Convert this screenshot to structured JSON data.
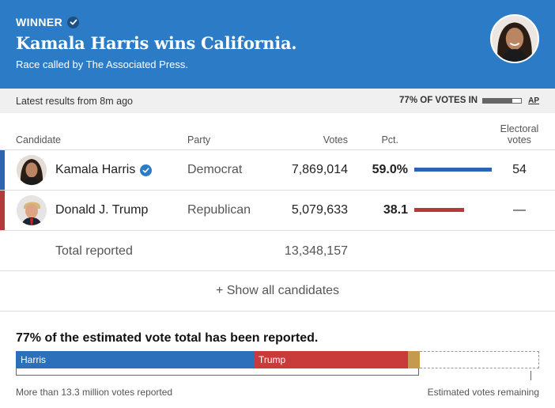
{
  "banner": {
    "winner_label": "WINNER",
    "headline": "Kamala Harris wins California.",
    "race_called": "Race called by The Associated Press.",
    "background_color": "#2c7bc6",
    "avatar_icon": "harris-portrait-icon"
  },
  "status": {
    "latest": "Latest results from 8m ago",
    "votes_in_label": "77% OF VOTES IN",
    "votes_in_fraction": 0.77,
    "source_link": "AP"
  },
  "table": {
    "headers": {
      "candidate": "Candidate",
      "party": "Party",
      "votes": "Votes",
      "pct": "Pct.",
      "electoral": "Electoral votes"
    },
    "rows": [
      {
        "name": "Kamala Harris",
        "party": "Democrat",
        "votes": "7,869,014",
        "pct": "59.0%",
        "pct_value": 59.0,
        "electoral_votes": "54",
        "winner": true,
        "color": "#2c64b5"
      },
      {
        "name": "Donald J. Trump",
        "party": "Republican",
        "votes": "5,079,633",
        "pct": "38.1",
        "pct_value": 38.1,
        "electoral_votes": "—",
        "winner": false,
        "color": "#b33a3a"
      }
    ],
    "total_label": "Total reported",
    "total_votes": "13,348,157",
    "show_all": "+ Show all candidates"
  },
  "estimate": {
    "title": "77% of the estimated vote total has been reported.",
    "reported_fraction": 0.77,
    "segments": [
      {
        "label": "Harris",
        "share": 0.454,
        "color": "#2c6fbb"
      },
      {
        "label": "Trump",
        "share": 0.294,
        "color": "#c93a3a"
      },
      {
        "label": "",
        "share": 0.022,
        "color": "#c49a4c"
      }
    ],
    "left_label": "More than 13.3 million votes reported",
    "right_label": "Estimated votes remaining"
  }
}
